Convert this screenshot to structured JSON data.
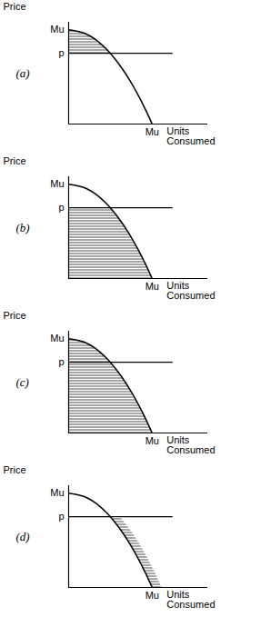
{
  "chart_data": [
    {
      "type": "line",
      "title": "(a)",
      "ylabel": "Price",
      "xlabel": "Units Consumed",
      "color": "#000000",
      "xlim": [
        0,
        100
      ],
      "ylim": [
        0,
        108
      ],
      "xticks": [
        {
          "value": 60,
          "label": "Mu"
        }
      ],
      "yticks": [
        {
          "value": 100,
          "label": "Mu"
        },
        {
          "value": 75,
          "label": "p"
        }
      ],
      "x": [
        0,
        13.4,
        19,
        23.2,
        26.8,
        30,
        37.9,
        44.5,
        50.2,
        55.3,
        60
      ],
      "values": [
        100,
        95,
        90,
        85,
        80,
        75,
        60,
        45,
        30,
        15,
        0
      ],
      "price": 75,
      "price_line_end": 75,
      "shaded": {
        "y": [
          75,
          80,
          85,
          90,
          95,
          100
        ],
        "x1": [
          0,
          0,
          0,
          0,
          0,
          0
        ],
        "x2": [
          30,
          26.8,
          23.2,
          19,
          13.4,
          0
        ]
      }
    },
    {
      "type": "line",
      "title": "(b)",
      "ylabel": "Price",
      "xlabel": "Units Consumed",
      "color": "#000000",
      "xlim": [
        0,
        100
      ],
      "ylim": [
        0,
        108
      ],
      "xticks": [
        {
          "value": 60,
          "label": "Mu"
        }
      ],
      "yticks": [
        {
          "value": 100,
          "label": "Mu"
        },
        {
          "value": 75,
          "label": "p"
        }
      ],
      "x": [
        0,
        13.4,
        19,
        23.2,
        26.8,
        30,
        37.9,
        44.5,
        50.2,
        55.3,
        60
      ],
      "values": [
        100,
        95,
        90,
        85,
        80,
        75,
        60,
        45,
        30,
        15,
        0
      ],
      "price": 75,
      "price_line_end": 75,
      "shaded": {
        "y": [
          0,
          15,
          30,
          45,
          60,
          75
        ],
        "x1": [
          0,
          0,
          0,
          0,
          0,
          0
        ],
        "x2": [
          60,
          55.3,
          50.2,
          44.5,
          37.9,
          30
        ]
      }
    },
    {
      "type": "line",
      "title": "(c)",
      "ylabel": "Price",
      "xlabel": "Units Consumed",
      "color": "#000000",
      "xlim": [
        0,
        100
      ],
      "ylim": [
        0,
        108
      ],
      "xticks": [
        {
          "value": 60,
          "label": "Mu"
        }
      ],
      "yticks": [
        {
          "value": 100,
          "label": "Mu"
        },
        {
          "value": 75,
          "label": "p"
        }
      ],
      "x": [
        0,
        13.4,
        19,
        23.2,
        26.8,
        30,
        37.9,
        44.5,
        50.2,
        55.3,
        60
      ],
      "values": [
        100,
        95,
        90,
        85,
        80,
        75,
        60,
        45,
        30,
        15,
        0
      ],
      "price": 75,
      "price_line_end": 75,
      "shaded": {
        "y": [
          0,
          15,
          30,
          45,
          60,
          75,
          80,
          85,
          90,
          95,
          100
        ],
        "x1": [
          0,
          0,
          0,
          0,
          0,
          0,
          0,
          0,
          0,
          0,
          0
        ],
        "x2": [
          60,
          55.3,
          50.2,
          44.5,
          37.9,
          30,
          26.8,
          23.2,
          19,
          13.4,
          0
        ]
      }
    },
    {
      "type": "line",
      "title": "(d)",
      "ylabel": "Price",
      "xlabel": "Units Consumed",
      "color": "#000000",
      "xlim": [
        0,
        100
      ],
      "ylim": [
        0,
        108
      ],
      "xticks": [
        {
          "value": 60,
          "label": "Mu"
        }
      ],
      "yticks": [
        {
          "value": 100,
          "label": "Mu"
        },
        {
          "value": 75,
          "label": "p"
        }
      ],
      "x": [
        0,
        13.4,
        19,
        23.2,
        26.8,
        30,
        37.9,
        44.5,
        50.2,
        55.3,
        60
      ],
      "values": [
        100,
        95,
        90,
        85,
        80,
        75,
        60,
        45,
        30,
        15,
        0
      ],
      "price": 75,
      "price_line_end": 75,
      "shaded": {
        "y": [
          0,
          15,
          30,
          45,
          60,
          75
        ],
        "x1": [
          60,
          55.3,
          50.2,
          44.5,
          37.9,
          30
        ],
        "x2": [
          67,
          62.3,
          57.2,
          51.5,
          44.9,
          37
        ]
      }
    }
  ]
}
